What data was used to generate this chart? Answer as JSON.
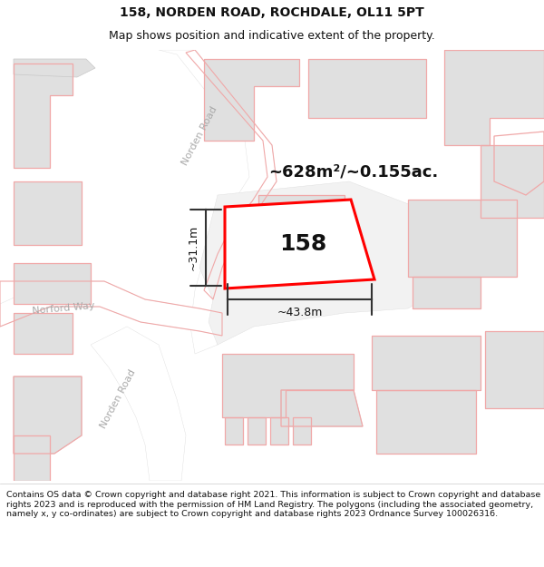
{
  "title_line1": "158, NORDEN ROAD, ROCHDALE, OL11 5PT",
  "title_line2": "Map shows position and indicative extent of the property.",
  "area_text": "~628m²/~0.155ac.",
  "label_158": "158",
  "dim_vertical": "~31.1m",
  "dim_horizontal": "~43.8m",
  "road_label_norden_upper": "Norden Road",
  "road_label_norford": "Norford Way",
  "road_label_norden_lower": "Norden Road",
  "footer_text": "Contains OS data © Crown copyright and database right 2021. This information is subject to Crown copyright and database rights 2023 and is reproduced with the permission of HM Land Registry. The polygons (including the associated geometry, namely x, y co-ordinates) are subject to Crown copyright and database rights 2023 Ordnance Survey 100026316.",
  "map_bg": "#f7f7f7",
  "road_fill": "#ffffff",
  "building_fill": "#e0e0e0",
  "building_stroke": "#c8c8c8",
  "pink": "#f0a8a8",
  "red": "#ff0000",
  "dim_color": "#333333",
  "text_color": "#111111",
  "road_text_color": "#aaaaaa",
  "title_fontsize": 10,
  "subtitle_fontsize": 9,
  "footer_fontsize": 6.8,
  "area_fontsize": 13,
  "dim_fontsize": 9,
  "label_fontsize": 18,
  "road_fontsize": 8
}
